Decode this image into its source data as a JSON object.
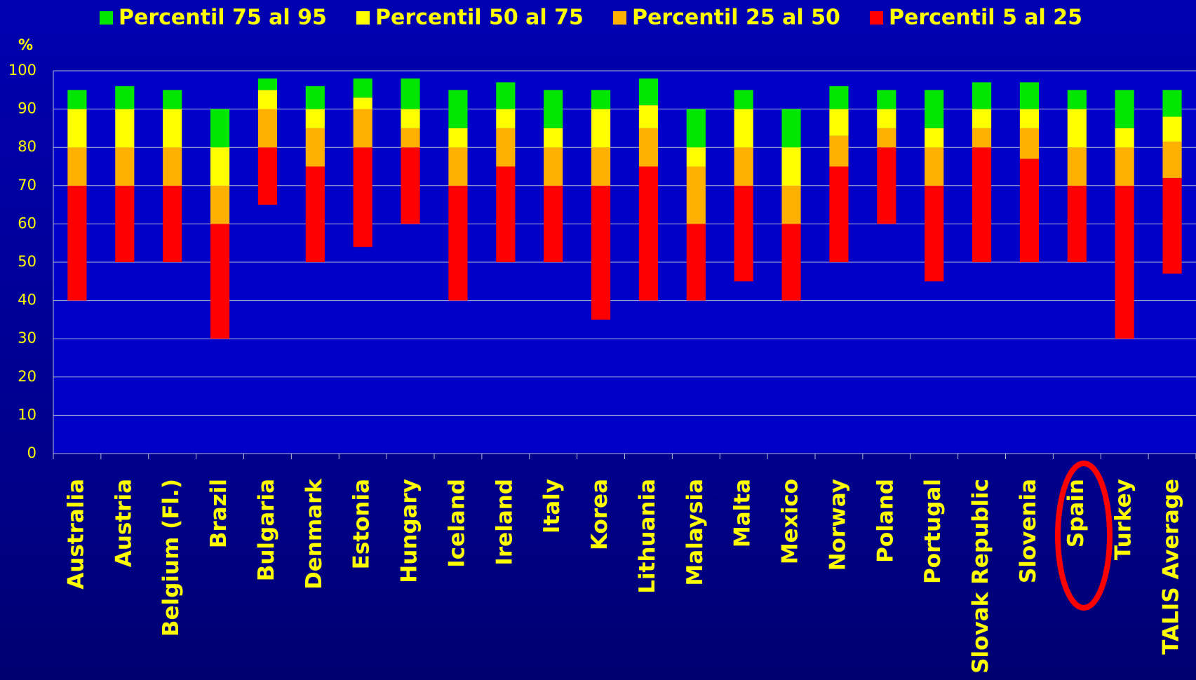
{
  "chart_data": {
    "type": "bar",
    "stacked": true,
    "y_label": "%",
    "categories": [
      "Australia",
      "Austria",
      "Belgium (Fl.)",
      "Brazil",
      "Bulgaria",
      "Denmark",
      "Estonia",
      "Hungary",
      "Iceland",
      "Ireland",
      "Italy",
      "Korea",
      "Lithuania",
      "Malaysia",
      "Malta",
      "Mexico",
      "Norway",
      "Poland",
      "Portugal",
      "Slovak Republic",
      "Slovenia",
      "Spain",
      "Turkey",
      "TALIS Average"
    ],
    "base": [
      40,
      50,
      50,
      30,
      65,
      50,
      54,
      60,
      40,
      50,
      50,
      35,
      40,
      40,
      45,
      40,
      50,
      60,
      45,
      50,
      50,
      50,
      30,
      47
    ],
    "series": [
      {
        "name": "Percentil 75 al 95",
        "color": "#00e600",
        "values": [
          5,
          6,
          5,
          10,
          3,
          6,
          5,
          8,
          10,
          7,
          10,
          5,
          7,
          10,
          5,
          10,
          6,
          5,
          10,
          7,
          7,
          5,
          10,
          7
        ]
      },
      {
        "name": "Percentil 50 al 75",
        "color": "#ffff00",
        "values": [
          10,
          10,
          10,
          10,
          5,
          5,
          3,
          5,
          5,
          5,
          5,
          10,
          6,
          5,
          10,
          10,
          7,
          5,
          5,
          5,
          5,
          10,
          5,
          6.5
        ]
      },
      {
        "name": "Percentil 25 al 50",
        "color": "#ffb000",
        "values": [
          10,
          10,
          10,
          10,
          10,
          10,
          10,
          5,
          10,
          10,
          10,
          10,
          10,
          15,
          10,
          10,
          8,
          5,
          10,
          5,
          8,
          10,
          10,
          9.5
        ]
      },
      {
        "name": "Percentil 5 al 25",
        "color": "#ff0000",
        "values": [
          30,
          20,
          20,
          30,
          15,
          25,
          26,
          20,
          30,
          25,
          20,
          35,
          35,
          20,
          25,
          20,
          25,
          20,
          25,
          30,
          27,
          20,
          40,
          25
        ]
      }
    ],
    "ylim": [
      0,
      100
    ],
    "yticks": [
      0,
      10,
      20,
      30,
      40,
      50,
      60,
      70,
      80,
      90,
      100
    ],
    "grid": true,
    "legend": "top"
  }
}
